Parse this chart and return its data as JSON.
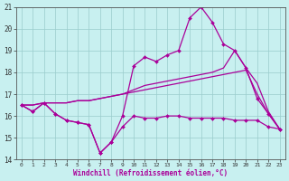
{
  "xlabel": "Windchill (Refroidissement éolien,°C)",
  "background_color": "#c8f0f0",
  "grid_color": "#99cccc",
  "line_color": "#aa0099",
  "xmin": -0.5,
  "xmax": 23.5,
  "ymin": 14,
  "ymax": 21,
  "yticks": [
    14,
    15,
    16,
    17,
    18,
    19,
    20,
    21
  ],
  "xticks": [
    0,
    1,
    2,
    3,
    4,
    5,
    6,
    7,
    8,
    9,
    10,
    11,
    12,
    13,
    14,
    15,
    16,
    17,
    18,
    19,
    20,
    21,
    22,
    23
  ],
  "line_jagged": [
    16.5,
    16.2,
    16.6,
    16.1,
    15.8,
    15.7,
    15.6,
    14.3,
    14.8,
    15.5,
    16.0,
    15.9,
    15.9,
    16.0,
    16.0,
    15.9,
    15.9,
    15.9,
    15.9,
    15.8,
    15.8,
    15.8,
    15.5,
    15.4
  ],
  "line_peak": [
    16.5,
    16.2,
    16.6,
    16.1,
    15.8,
    15.7,
    15.6,
    14.3,
    14.8,
    16.0,
    18.3,
    18.7,
    18.5,
    18.8,
    19.0,
    20.5,
    21.0,
    20.3,
    19.3,
    19.0,
    18.2,
    16.8,
    16.1,
    15.4
  ],
  "line_upper": [
    16.5,
    16.5,
    16.6,
    16.6,
    16.6,
    16.7,
    16.7,
    16.8,
    16.9,
    17.0,
    17.2,
    17.4,
    17.5,
    17.6,
    17.7,
    17.8,
    17.9,
    18.0,
    18.2,
    19.0,
    18.2,
    17.5,
    16.2,
    15.4
  ],
  "line_lower": [
    16.5,
    16.5,
    16.6,
    16.6,
    16.6,
    16.7,
    16.7,
    16.8,
    16.9,
    17.0,
    17.1,
    17.2,
    17.3,
    17.4,
    17.5,
    17.6,
    17.7,
    17.8,
    17.9,
    18.0,
    18.1,
    17.0,
    16.1,
    15.4
  ]
}
